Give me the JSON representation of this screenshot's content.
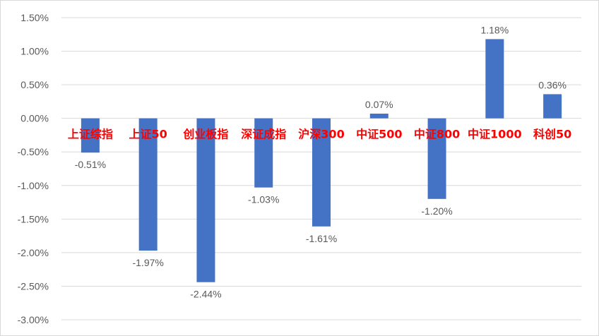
{
  "chart_data": {
    "type": "bar",
    "title": "",
    "xlabel": "",
    "ylabel": "",
    "categories": [
      "上证综指",
      "上证50",
      "创业板指",
      "深证成指",
      "沪深300",
      "中证500",
      "中证800",
      "中证1000",
      "科创50"
    ],
    "values": [
      -0.51,
      -1.97,
      -2.44,
      -1.03,
      -1.61,
      0.07,
      -1.2,
      1.18,
      0.36
    ],
    "data_labels": [
      "-0.51%",
      "-1.97%",
      "-2.44%",
      "-1.03%",
      "-1.61%",
      "0.07%",
      "-1.20%",
      "1.18%",
      "0.36%"
    ],
    "ylim": [
      -3.0,
      1.5
    ],
    "yticks": [
      1.5,
      1.0,
      0.5,
      0.0,
      -0.5,
      -1.0,
      -1.5,
      -2.0,
      -2.5,
      -3.0
    ],
    "ytick_labels": [
      "1.50%",
      "1.00%",
      "0.50%",
      "0.00%",
      "-0.50%",
      "-1.00%",
      "-1.50%",
      "-2.00%",
      "-2.50%",
      "-3.00%"
    ],
    "grid": true,
    "legend": "none",
    "bar_color": "#4472c4",
    "category_label_color": "#ff0000",
    "gridline_color": "#d9d9d9",
    "text_color": "#595959"
  }
}
